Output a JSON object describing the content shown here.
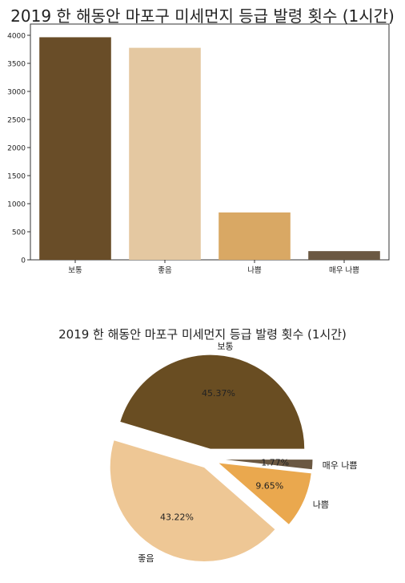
{
  "chart_data": [
    {
      "type": "bar",
      "title": "2019 한 해동안 마포구 미세먼지 등급 발령 횟수 (1시간)",
      "categories": [
        "보통",
        "좋음",
        "나쁨",
        "매우 나쁨"
      ],
      "values": [
        3965,
        3777,
        844,
        155
      ],
      "colors": [
        "#694d28",
        "#e4c8a1",
        "#d9a864",
        "#6b5842"
      ],
      "ylim": [
        0,
        4200
      ],
      "yticks": [
        0,
        500,
        1000,
        1500,
        2000,
        2500,
        3000,
        3500,
        4000
      ],
      "xlabel": "",
      "ylabel": "",
      "grid": false
    },
    {
      "type": "pie",
      "title": "2019 한 해동안 마포구 미세먼지 등급 발령 횟수 (1시간)",
      "labels": [
        "보통",
        "좋음",
        "나쁨",
        "매우 나쁨"
      ],
      "values": [
        45.37,
        43.22,
        9.65,
        1.77
      ],
      "percent_labels": [
        "45.37%",
        "43.22%",
        "9.65%",
        "1.77%"
      ],
      "colors": [
        "#694d22",
        "#eec795",
        "#eaa84e",
        "#6b5842"
      ],
      "explode": true
    }
  ]
}
